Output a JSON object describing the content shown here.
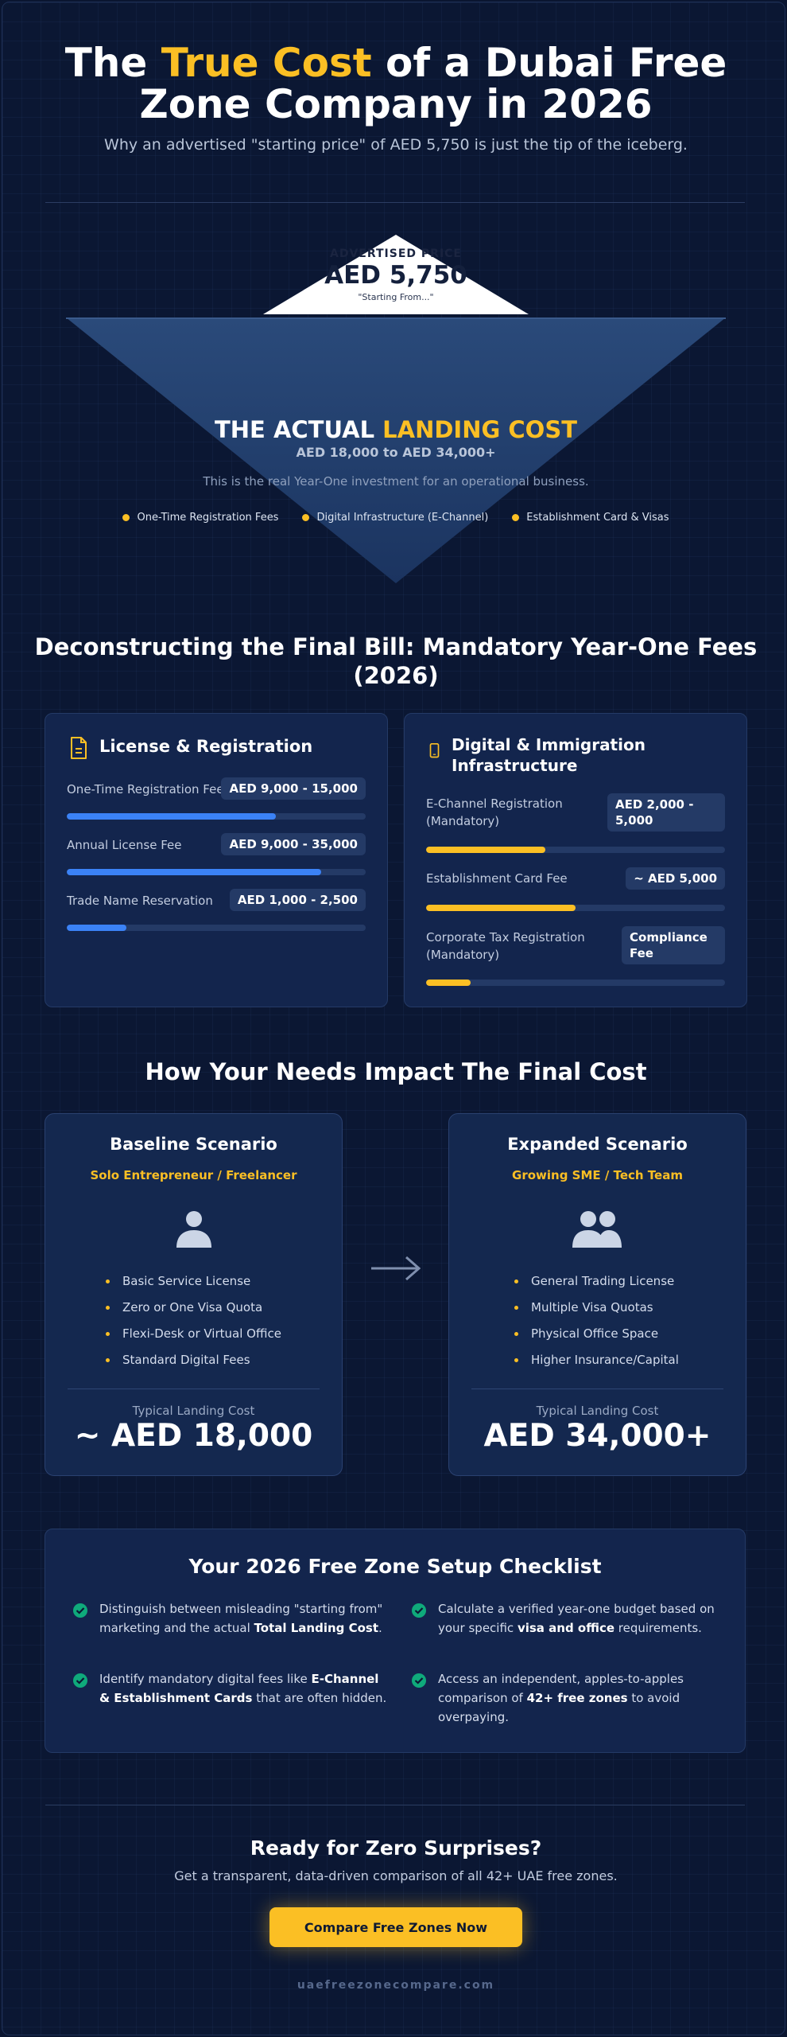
{
  "header": {
    "title_pre": "The ",
    "title_highlight": "True Cost",
    "title_post": " of a Dubai Free Zone Company in 2026",
    "subtitle": "Why an advertised \"starting price\" of AED 5,750 is just the tip of the iceberg."
  },
  "iceberg": {
    "tip_label": "ADVERTISED PRICE",
    "tip_price": "AED 5,750",
    "tip_note": "\"Starting From...\"",
    "actual_pre": "THE ACTUAL ",
    "actual_highlight": "LANDING COST",
    "actual_range": "AED 18,000 to AED 34,000+",
    "actual_note": "This is the real Year-One investment for an operational business.",
    "bullets": [
      "One-Time Registration Fees",
      "Digital Infrastructure (E-Channel)",
      "Establishment Card & Visas"
    ]
  },
  "fees": {
    "title": "Deconstructing the Final Bill: Mandatory Year-One Fees (2026)",
    "license": {
      "title": "License & Registration",
      "icon": "document-icon",
      "items": [
        {
          "label": "One-Time Registration Fee",
          "value": "AED 9,000 - 15,000",
          "level": 0.7
        },
        {
          "label": "Annual License Fee",
          "value": "AED 9,000 - 35,000",
          "level": 0.85
        },
        {
          "label": "Trade Name Reservation",
          "value": "AED 1,000 - 2,500",
          "level": 0.2
        }
      ]
    },
    "digital": {
      "title": "Digital & Immigration Infrastructure",
      "icon": "phone-icon",
      "items": [
        {
          "label": "E-Channel Registration (Mandatory)",
          "value": "AED 2,000 - 5,000",
          "level": 0.4
        },
        {
          "label": "Establishment Card Fee",
          "value": "~ AED 5,000",
          "level": 0.5
        },
        {
          "label": "Corporate Tax Registration (Mandatory)",
          "value": "Compliance Fee",
          "level": 0.15
        }
      ]
    }
  },
  "scenarios": {
    "title": "How Your Needs Impact The Final Cost",
    "baseline": {
      "name": "Baseline Scenario",
      "tag": "Solo Entrepreneur / Freelancer",
      "items": [
        "Basic Service License",
        "Zero or One Visa Quota",
        "Flexi-Desk or Virtual Office",
        "Standard Digital Fees"
      ],
      "cost_label": "Typical Landing Cost",
      "cost": "~ AED 18,000"
    },
    "expanded": {
      "name": "Expanded Scenario",
      "tag": "Growing SME / Tech Team",
      "items": [
        "General Trading License",
        "Multiple Visa Quotas",
        "Physical Office Space",
        "Higher Insurance/Capital"
      ],
      "cost_label": "Typical Landing Cost",
      "cost": "AED 34,000+"
    }
  },
  "checklist": {
    "title": "Your 2026 Free Zone Setup Checklist",
    "items": [
      {
        "pre": "Distinguish between misleading \"starting from\" marketing and the actual ",
        "bold": "Total Landing Cost",
        "post": "."
      },
      {
        "pre": "Calculate a verified year-one budget based on your specific ",
        "bold": "visa and office",
        "post": " requirements."
      },
      {
        "pre": "Identify mandatory digital fees like ",
        "bold": "E-Channel & Establishment Cards",
        "post": " that are often hidden."
      },
      {
        "pre": "Access an independent, apples-to-apples comparison of ",
        "bold": "42+ free zones",
        "post": " to avoid overpaying."
      }
    ]
  },
  "cta": {
    "title": "Ready for Zero Surprises?",
    "subtitle": "Get a transparent, data-driven comparison of all 42+ UAE free zones.",
    "button": "Compare Free Zones Now",
    "footer": "uaefreezonecompare.com"
  },
  "colors": {
    "accent": "#fbbf24",
    "blue_bar": "#3b82f6",
    "background": "#0b1733"
  }
}
